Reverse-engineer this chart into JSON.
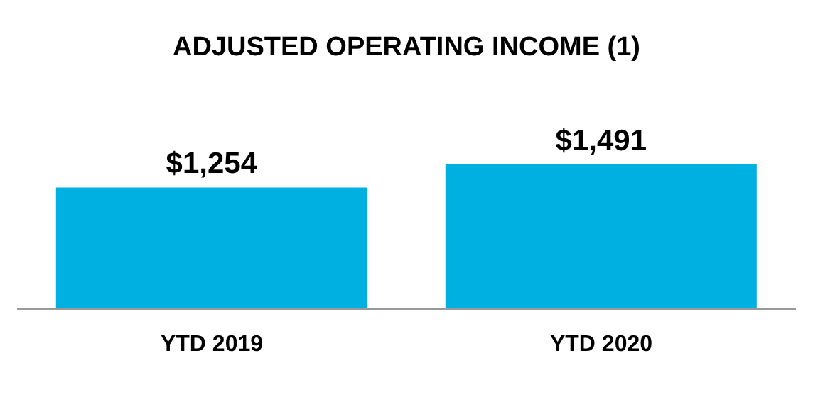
{
  "chart_data": {
    "type": "bar",
    "title": "ADJUSTED OPERATING INCOME (1)",
    "categories": [
      "YTD 2019",
      "YTD 2020"
    ],
    "values": [
      1254,
      1491
    ],
    "value_labels": [
      "$1,254",
      "$1,491"
    ],
    "color": "#00b0e0"
  }
}
